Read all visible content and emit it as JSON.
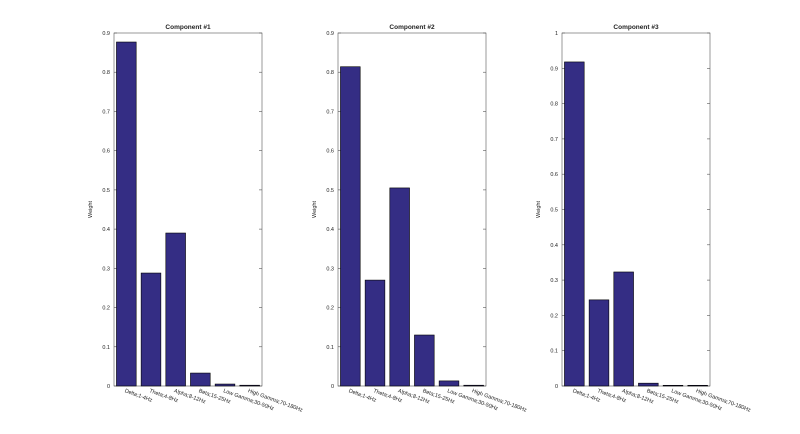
{
  "chart_data": [
    {
      "type": "bar",
      "title": "Component #1",
      "y_label": "Weight",
      "categories": [
        "Delta;1-4Hz",
        "Theta;4-8Hz",
        "Alpha;8-12Hz",
        "Beta;15-25Hz",
        "Low Gamma;30-50Hz",
        "High Gamma;70-180Hz"
      ],
      "values": [
        0.877,
        0.288,
        0.39,
        0.033,
        0.005,
        0.002
      ],
      "color": "#342d84",
      "ylim": [
        0,
        0.9
      ],
      "yticks": [
        0,
        0.1,
        0.2,
        0.3,
        0.4,
        0.5,
        0.6,
        0.7,
        0.8,
        0.9
      ]
    },
    {
      "type": "bar",
      "title": "Component #2",
      "y_label": "Weight",
      "categories": [
        "Delta;1-4Hz",
        "Theta;4-8Hz",
        "Alpha;8-12Hz",
        "Beta;15-25Hz",
        "Low Gamma;30-50Hz",
        "High Gamma;70-180Hz"
      ],
      "values": [
        0.814,
        0.27,
        0.505,
        0.13,
        0.013,
        0.002
      ],
      "color": "#342d84",
      "ylim": [
        0,
        0.9
      ],
      "yticks": [
        0,
        0.1,
        0.2,
        0.3,
        0.4,
        0.5,
        0.6,
        0.7,
        0.8,
        0.9
      ]
    },
    {
      "type": "bar",
      "title": "Component #3",
      "y_label": "Weight",
      "categories": [
        "Delta;1-4Hz",
        "Theta;4-8Hz",
        "Alpha;8-12Hz",
        "Beta;15-25Hz",
        "Low Gamma;30-50Hz",
        "High Gamma;70-180Hz"
      ],
      "values": [
        0.918,
        0.244,
        0.323,
        0.008,
        0.002,
        0.002
      ],
      "color": "#342d84",
      "ylim": [
        0,
        1
      ],
      "yticks": [
        0,
        0.1,
        0.2,
        0.3,
        0.4,
        0.5,
        0.6,
        0.7,
        0.8,
        0.9,
        1
      ]
    }
  ]
}
